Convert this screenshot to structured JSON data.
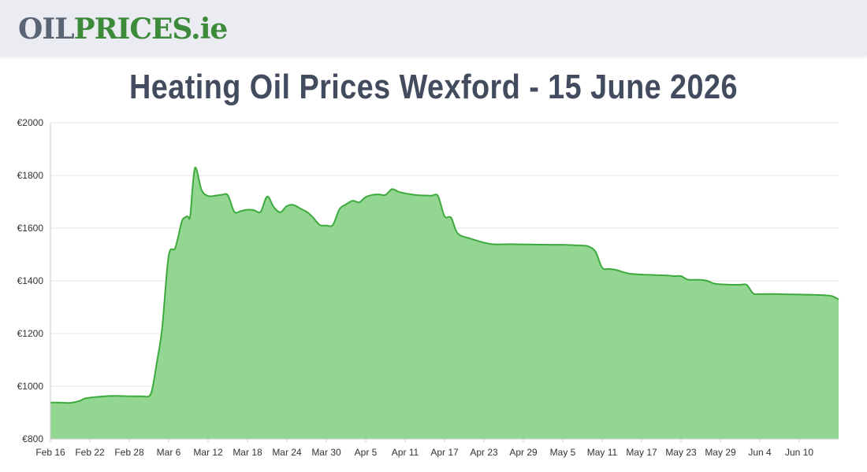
{
  "header": {
    "logo": {
      "part1": "OIL",
      "part2": "PRICES",
      "part3": ".ie"
    }
  },
  "page_title": "Heating Oil Prices Wexford - 15 June 2026",
  "colors": {
    "line": "#3daa3d",
    "fill": "#92d692",
    "grid": "#e6e6e6",
    "axis": "#cccccc"
  },
  "chart_data": {
    "type": "area",
    "title": "Heating Oil Prices Wexford - 15 June 2026",
    "xlabel": "",
    "ylabel": "",
    "ylim": [
      800,
      2000
    ],
    "xlim": [
      0,
      120
    ],
    "grid": true,
    "legend": "none",
    "y_ticks": [
      "€2000",
      "€1800",
      "€1600",
      "€1400",
      "€1200",
      "€1000",
      "€800"
    ],
    "y_tick_values": [
      2000,
      1800,
      1600,
      1400,
      1200,
      1000,
      800
    ],
    "x_ticks": [
      "Feb 16",
      "Feb 22",
      "Feb 28",
      "Mar 6",
      "Mar 12",
      "Mar 18",
      "Mar 24",
      "Mar 30",
      "Apr 5",
      "Apr 11",
      "Apr 17",
      "Apr 23",
      "Apr 29",
      "May 5",
      "May 11",
      "May 17",
      "May 23",
      "May 29",
      "Jun 4",
      "Jun 10"
    ],
    "x_tick_days": [
      0,
      6,
      12,
      18,
      24,
      30,
      36,
      42,
      48,
      54,
      60,
      66,
      72,
      78,
      84,
      90,
      96,
      102,
      108,
      114
    ],
    "series": [
      {
        "x": [
          0,
          1.5,
          3,
          4.5,
          5.5,
          9,
          11,
          12,
          13,
          14,
          15,
          15.5,
          16.2,
          17,
          18,
          19,
          20,
          20.5,
          20.8,
          21,
          21.3,
          22,
          23,
          24,
          25,
          26,
          27,
          28,
          29,
          30,
          31,
          32,
          33,
          34,
          35,
          36,
          37,
          38,
          39,
          40,
          41,
          42,
          43,
          44,
          45,
          46,
          47,
          48,
          49,
          50,
          51,
          52,
          53,
          54,
          55,
          55.5,
          56,
          57,
          58,
          59,
          60,
          61,
          62,
          64,
          67,
          70,
          73,
          76,
          78,
          80,
          81,
          82,
          83,
          84,
          85,
          86,
          88,
          90,
          92,
          94,
          95,
          96,
          97,
          98,
          99,
          100,
          101,
          102,
          103,
          104,
          105,
          106,
          107,
          108,
          110,
          112,
          114,
          116,
          118,
          119,
          120
        ],
        "y": [
          938,
          938,
          937,
          945,
          955,
          963,
          963,
          962,
          962,
          962,
          962,
          990,
          1090,
          1220,
          1495,
          1525,
          1625,
          1640,
          1645,
          1642,
          1650,
          1828,
          1745,
          1722,
          1723,
          1726,
          1725,
          1662,
          1665,
          1670,
          1668,
          1662,
          1720,
          1680,
          1660,
          1684,
          1688,
          1675,
          1662,
          1640,
          1612,
          1610,
          1612,
          1672,
          1690,
          1704,
          1698,
          1718,
          1726,
          1728,
          1726,
          1748,
          1738,
          1732,
          1728,
          1726,
          1725,
          1724,
          1723,
          1722,
          1645,
          1640,
          1580,
          1560,
          1540,
          1539,
          1538,
          1537,
          1537,
          1535,
          1534,
          1530,
          1510,
          1450,
          1445,
          1442,
          1428,
          1424,
          1422,
          1420,
          1418,
          1418,
          1405,
          1404,
          1404,
          1400,
          1390,
          1387,
          1386,
          1385,
          1385,
          1385,
          1352,
          1350,
          1350,
          1349,
          1348,
          1347,
          1345,
          1342,
          1330
        ]
      }
    ]
  }
}
